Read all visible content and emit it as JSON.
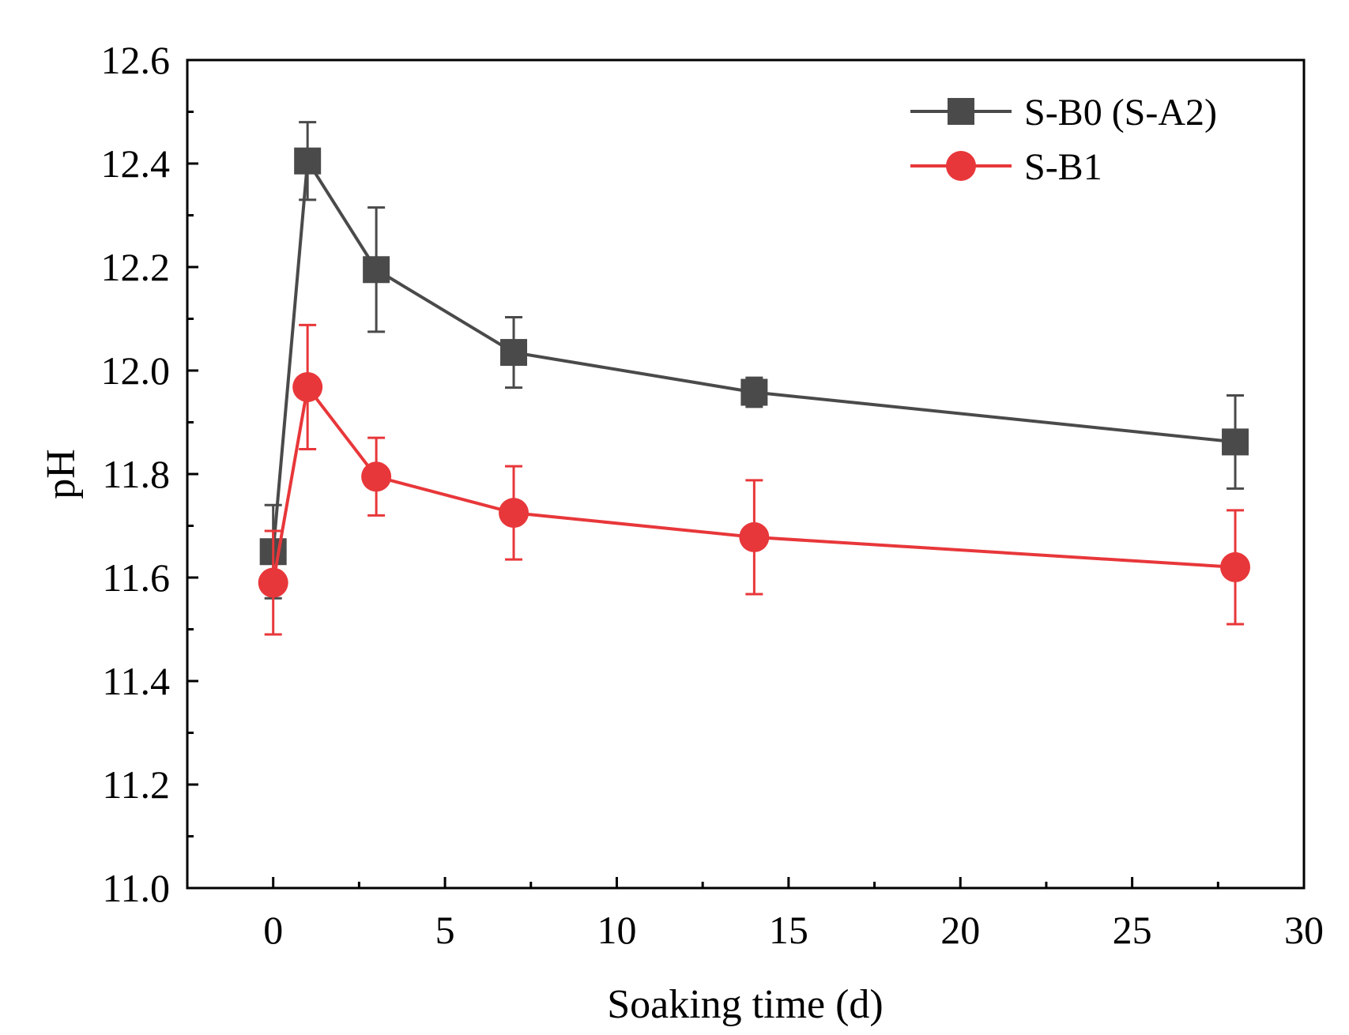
{
  "chart_data": {
    "type": "line",
    "title": "",
    "xlabel": "Soaking time (d)",
    "ylabel": "pH",
    "xlim": [
      -2.5,
      30
    ],
    "ylim": [
      11.0,
      12.6
    ],
    "xticks": [
      0,
      5,
      10,
      15,
      20,
      25,
      30
    ],
    "xtick_labels": [
      "0",
      "5",
      "10",
      "15",
      "20",
      "25",
      "30"
    ],
    "yticks": [
      11.0,
      11.2,
      11.4,
      11.6,
      11.8,
      12.0,
      12.2,
      12.4,
      12.6
    ],
    "ytick_labels": [
      "11.0",
      "11.2",
      "11.4",
      "11.6",
      "11.8",
      "12.0",
      "12.2",
      "12.4",
      "12.6"
    ],
    "grid": false,
    "legend_position": "top-right",
    "series": [
      {
        "name": "S-B0 (S-A2)",
        "color": "#4a4a4a",
        "marker": "square",
        "x": [
          0,
          1,
          3,
          7,
          14,
          28
        ],
        "y": [
          11.65,
          12.405,
          12.195,
          12.035,
          11.958,
          11.862
        ],
        "error": [
          0.09,
          0.075,
          0.12,
          0.068,
          0.028,
          0.09
        ]
      },
      {
        "name": "S-B1",
        "color": "#e8373a",
        "marker": "circle",
        "x": [
          0,
          1,
          3,
          7,
          14,
          28
        ],
        "y": [
          11.59,
          11.968,
          11.795,
          11.725,
          11.678,
          11.62
        ],
        "error": [
          0.1,
          0.12,
          0.075,
          0.09,
          0.11,
          0.11
        ]
      }
    ]
  }
}
